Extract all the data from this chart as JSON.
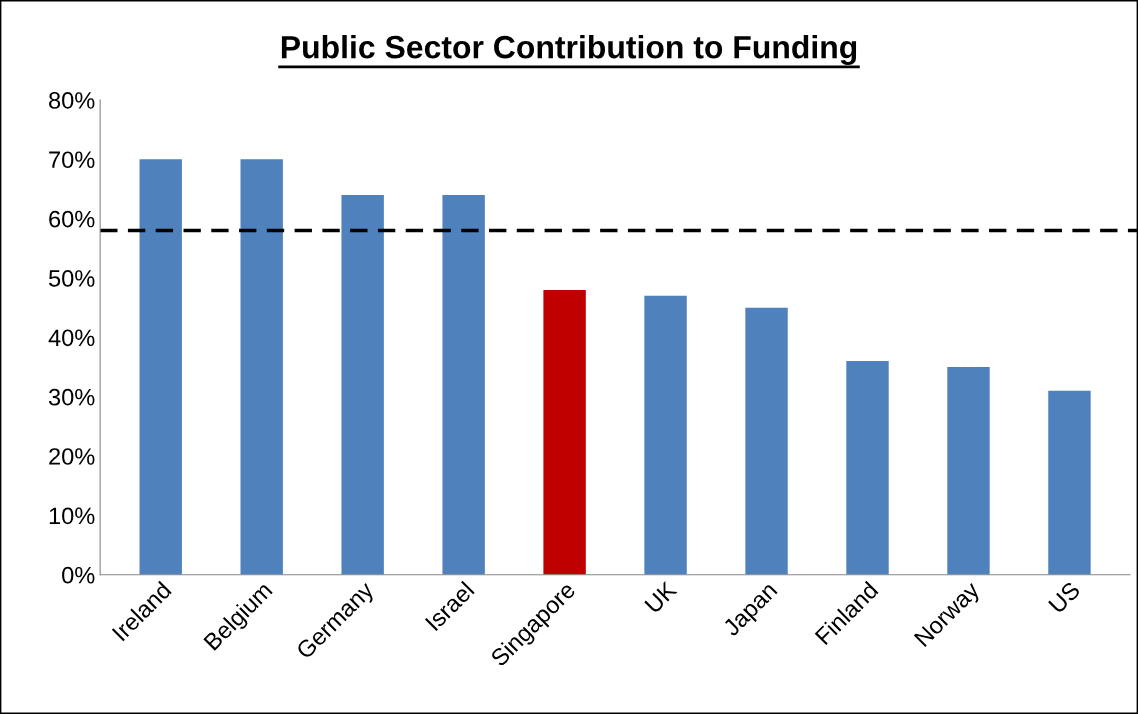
{
  "chart_data": {
    "type": "bar",
    "title": "Public Sector Contribution to Funding",
    "categories": [
      "Ireland",
      "Belgium",
      "Germany",
      "Israel",
      "Singapore",
      "UK",
      "Japan",
      "Finland",
      "Norway",
      "US"
    ],
    "values": [
      70,
      70,
      64,
      64,
      48,
      47,
      45,
      36,
      35,
      31
    ],
    "colors": [
      "#4f81bd",
      "#4f81bd",
      "#4f81bd",
      "#4f81bd",
      "#c00000",
      "#4f81bd",
      "#4f81bd",
      "#4f81bd",
      "#4f81bd",
      "#4f81bd"
    ],
    "ylim": [
      0,
      80
    ],
    "yticks": [
      {
        "value": 0,
        "label": "0%"
      },
      {
        "value": 10,
        "label": "10%"
      },
      {
        "value": 20,
        "label": "20%"
      },
      {
        "value": 30,
        "label": "30%"
      },
      {
        "value": 40,
        "label": "40%"
      },
      {
        "value": 50,
        "label": "50%"
      },
      {
        "value": 60,
        "label": "60%"
      },
      {
        "value": 70,
        "label": "70%"
      },
      {
        "value": 80,
        "label": "80%"
      }
    ],
    "ref_lines": [
      {
        "axis": "y",
        "value": 58,
        "color": "#000000",
        "line_style": "dashed"
      }
    ],
    "grid": false
  }
}
